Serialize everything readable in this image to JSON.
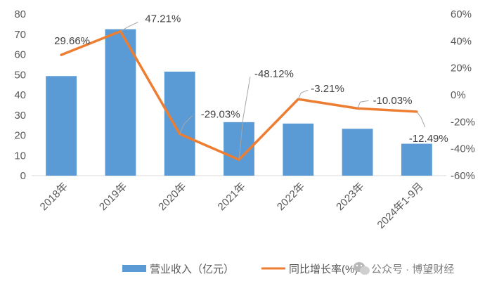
{
  "chart_data": {
    "type": "bar+line",
    "categories": [
      "2018年",
      "2019年",
      "2020年",
      "2021年",
      "2022年",
      "2023年",
      "2024年1-9月"
    ],
    "series": [
      {
        "name": "营业收入（亿元）",
        "type": "bar",
        "axis": "left",
        "color": "#5B9BD5",
        "values": [
          49.3,
          72.5,
          51.5,
          26.5,
          25.8,
          23.2,
          15.8
        ]
      },
      {
        "name": "同比增长率(%)",
        "type": "line",
        "axis": "right",
        "color": "#ED7D31",
        "values": [
          29.66,
          47.21,
          -29.03,
          -48.12,
          -3.21,
          -10.03,
          -12.49
        ],
        "labels": [
          "29.66%",
          "47.21%",
          "-29.03%",
          "-48.12%",
          "-3.21%",
          "-10.03%",
          "-12.49%"
        ]
      }
    ],
    "y_left": {
      "min": 0,
      "max": 80,
      "step": 10,
      "ticks": [
        "0",
        "10",
        "20",
        "30",
        "40",
        "50",
        "60",
        "70",
        "80"
      ]
    },
    "y_right": {
      "min": -60,
      "max": 60,
      "step": 20,
      "ticks": [
        "-60%",
        "-40%",
        "-20%",
        "0%",
        "20%",
        "40%",
        "60%"
      ]
    },
    "grid": false,
    "legend_position": "bottom"
  },
  "watermark": {
    "icon": "wechat-icon",
    "text": "公众号 · 博望财经"
  }
}
